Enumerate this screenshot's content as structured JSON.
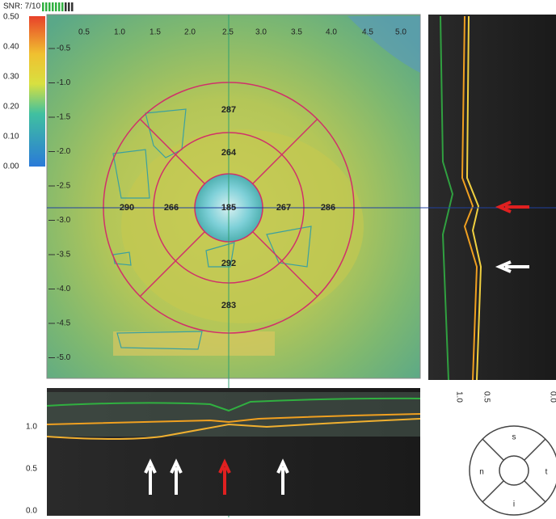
{
  "header": {
    "snr": "SNR: 7/10"
  },
  "color_scale": {
    "labels": [
      "0.50",
      "0.40",
      "0.30",
      "0.20",
      "0.10",
      "0.00"
    ]
  },
  "map": {
    "x_labels": [
      "0.5",
      "1.0",
      "1.5",
      "2.0",
      "2.5",
      "3.0",
      "3.5",
      "4.0",
      "4.5",
      "5.0"
    ],
    "y_labels": [
      "-0.5",
      "-1.0",
      "-1.5",
      "-2.0",
      "-2.5",
      "-3.0",
      "-3.5",
      "-4.0",
      "-4.5",
      "-5.0"
    ],
    "sectors": {
      "outer_superior": "287",
      "inner_superior": "264",
      "outer_nasal": "290",
      "inner_nasal": "266",
      "center": "185",
      "inner_temporal": "267",
      "outer_temporal": "286",
      "inner_inferior": "292",
      "outer_inferior": "283"
    }
  },
  "vertical_scan": {
    "labels": [
      "1.0",
      "0.5",
      "0.0"
    ]
  },
  "horizontal_scan": {
    "labels": [
      "1.0",
      "0.5",
      "0.0"
    ]
  },
  "quadrants": {
    "superior": "s",
    "nasal": "n",
    "temporal": "t",
    "inferior": "i"
  }
}
